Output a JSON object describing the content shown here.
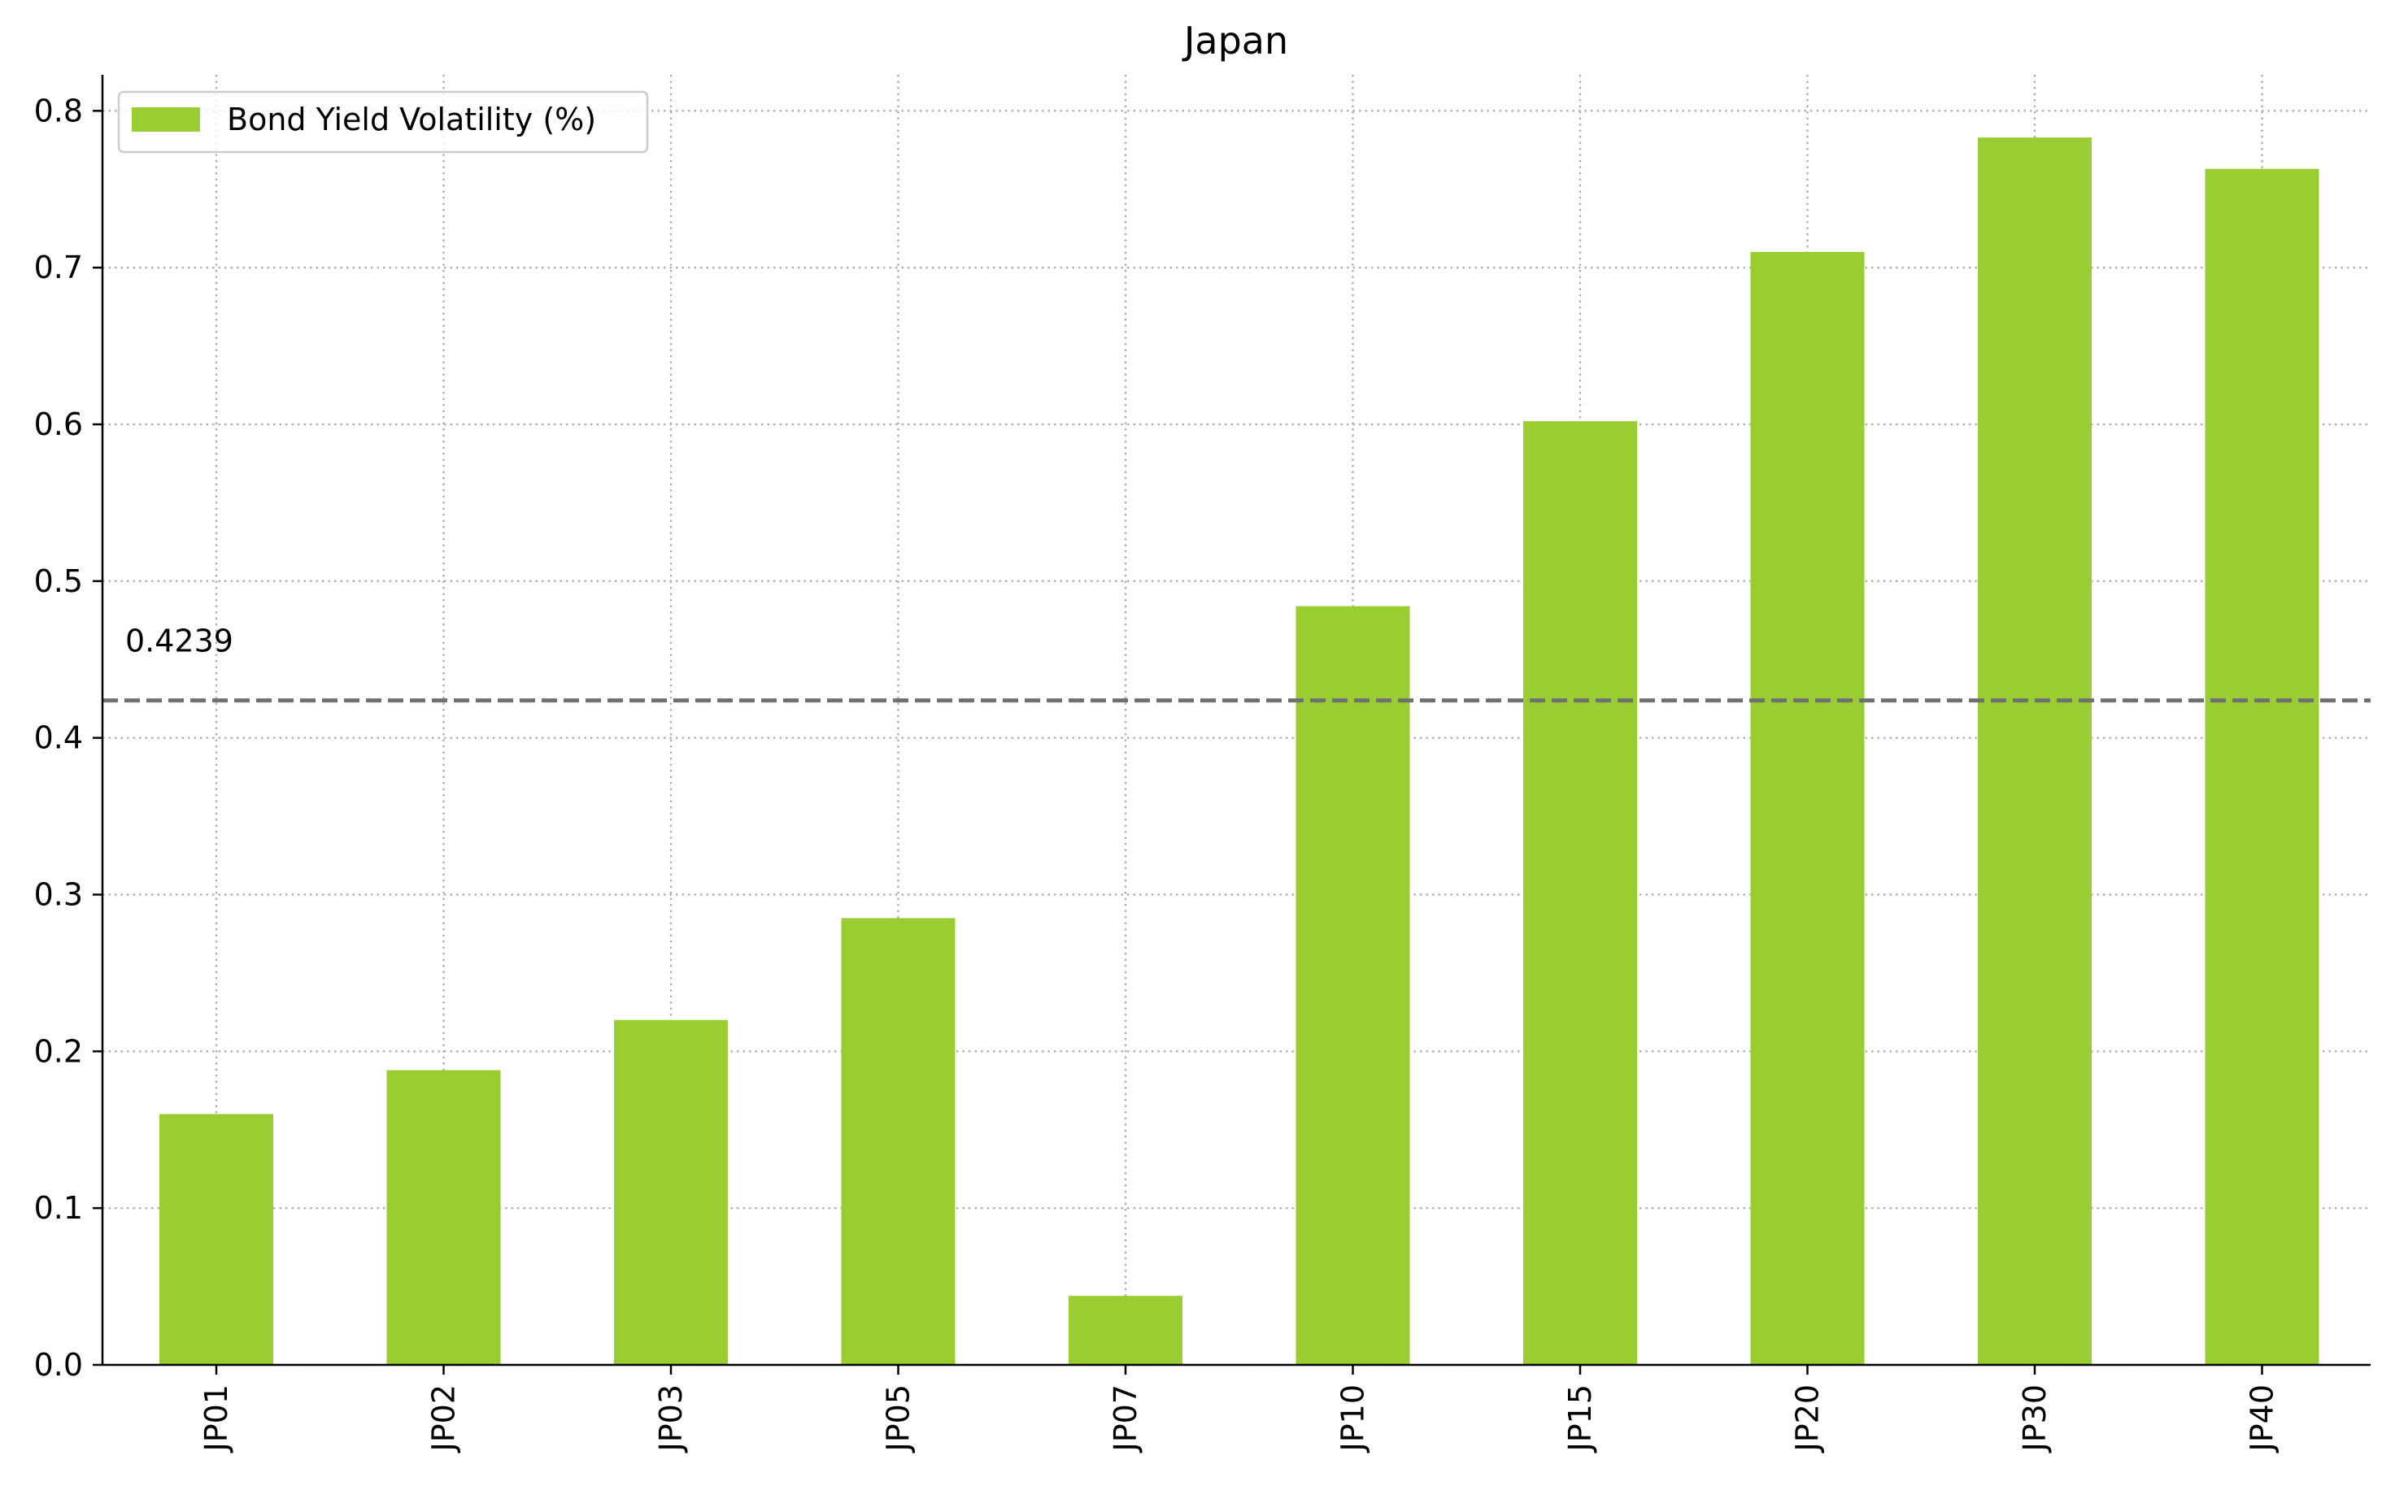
{
  "chart_data": {
    "type": "bar",
    "title": "Japan",
    "xlabel": "",
    "ylabel": "",
    "categories": [
      "JP01",
      "JP02",
      "JP03",
      "JP05",
      "JP07",
      "JP10",
      "JP15",
      "JP20",
      "JP30",
      "JP40"
    ],
    "series": [
      {
        "name": "Bond Yield Volatility (%)",
        "color": "#9acd32",
        "values": [
          0.16,
          0.188,
          0.22,
          0.285,
          0.044,
          0.484,
          0.602,
          0.71,
          0.783,
          0.763
        ]
      }
    ],
    "ylim": [
      0,
      0.823
    ],
    "yticks": [
      "0.0",
      "0.1",
      "0.2",
      "0.3",
      "0.4",
      "0.5",
      "0.6",
      "0.7",
      "0.8"
    ],
    "grid": true,
    "legend_position": "top-left",
    "reference_line": {
      "value": 0.4239,
      "label": "0.4239",
      "style": "dashed",
      "color": "#707070"
    }
  }
}
